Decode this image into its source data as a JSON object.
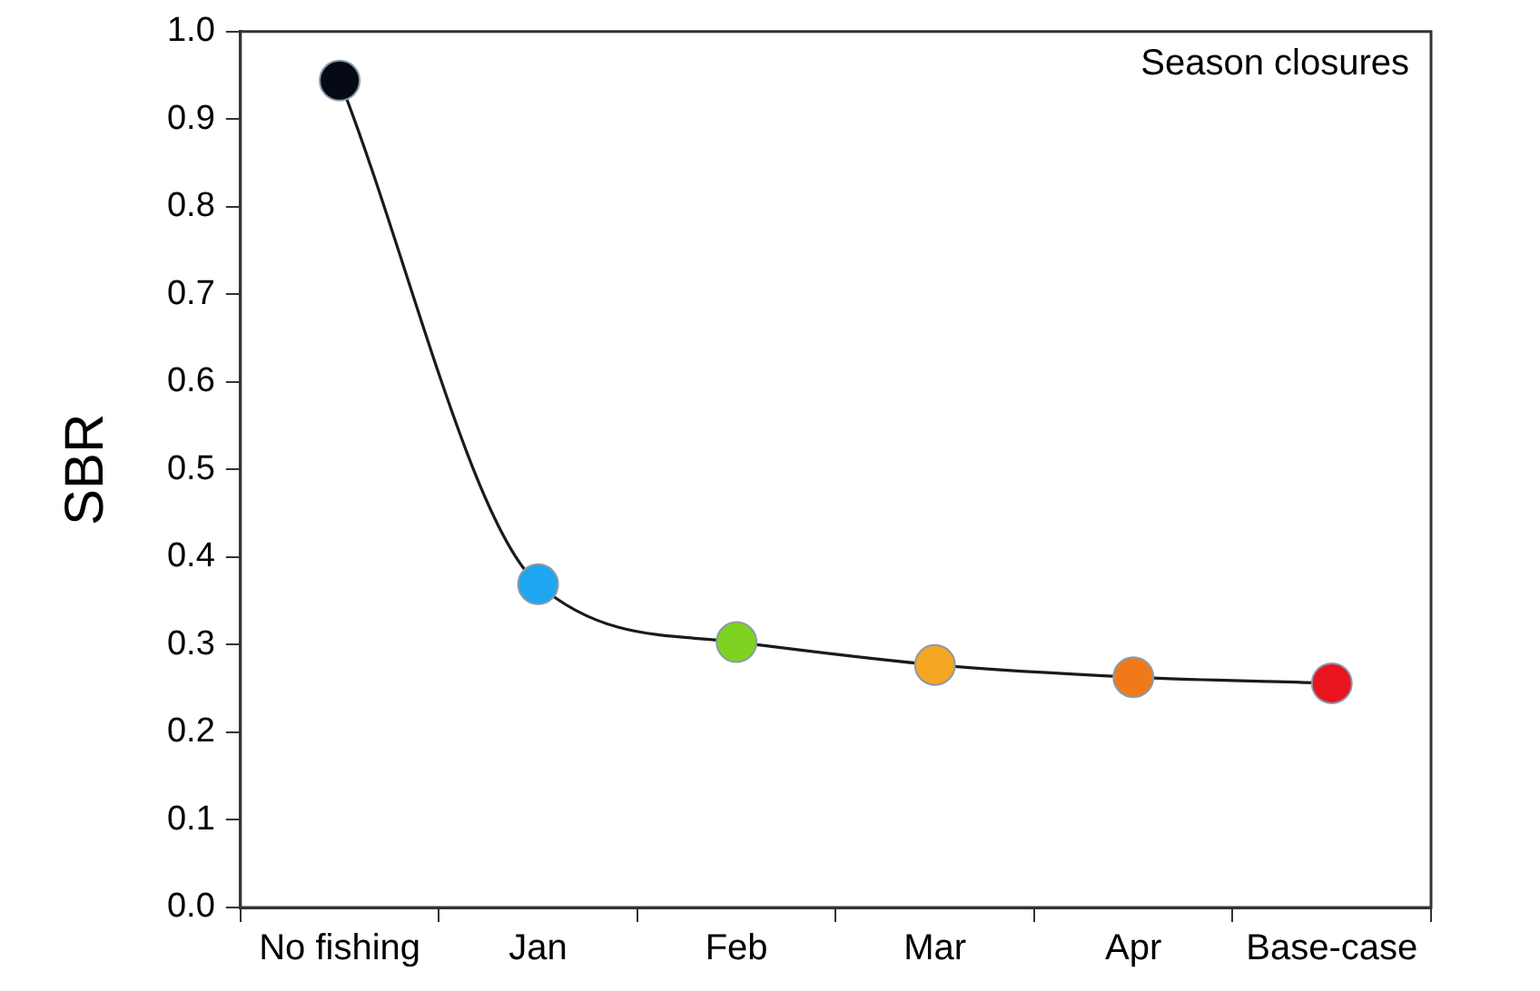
{
  "chart_data": {
    "type": "line",
    "ylabel": "SBR",
    "annotations": [
      "Season closures"
    ],
    "categories": [
      "No fishing",
      "Jan",
      "Feb",
      "Mar",
      "Apr",
      "Base-case"
    ],
    "series": [
      {
        "color": "#1a1a1a",
        "colors": [
          "#050a14",
          "#1ea7f0",
          "#7ed321",
          "#f5a623",
          "#f07a1a",
          "#e8141e"
        ],
        "values": [
          0.944,
          0.369,
          0.303,
          0.277,
          0.263,
          0.256
        ]
      }
    ],
    "ylim": [
      0,
      1
    ],
    "yticks": [
      {
        "value": 0,
        "label": "0.0"
      },
      0.1,
      0.2,
      0.3,
      0.4,
      0.5,
      0.6,
      0.7,
      0.8,
      0.9,
      {
        "value": 1,
        "label": "1.0"
      }
    ],
    "grid": false,
    "legend": false,
    "marker": "circle",
    "line_style": "solid"
  }
}
